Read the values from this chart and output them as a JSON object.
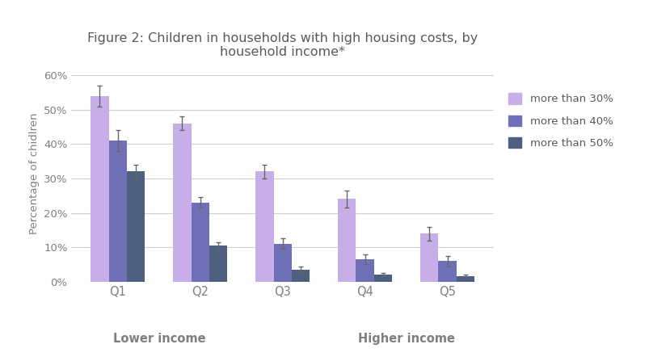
{
  "title": "Figure 2: Children in households with high housing costs, by\nhousehold income*",
  "ylabel": "Percentage of chidlren",
  "categories": [
    "Q1",
    "Q2",
    "Q3",
    "Q4",
    "Q5"
  ],
  "lower_income_label": "Lower income",
  "higher_income_label": "Higher income",
  "series": {
    "more than 30%": {
      "values": [
        54,
        46,
        32,
        24,
        14
      ],
      "errors": [
        3,
        2,
        2,
        2.5,
        2
      ],
      "color": "#c8aee8"
    },
    "more than 40%": {
      "values": [
        41,
        23,
        11,
        6.5,
        6
      ],
      "errors": [
        3,
        1.5,
        1.5,
        1.5,
        1.5
      ],
      "color": "#7070b8"
    },
    "more than 50%": {
      "values": [
        32,
        10.5,
        3.5,
        2,
        1.5
      ],
      "errors": [
        2,
        1,
        0.8,
        0.5,
        0.5
      ],
      "color": "#4d6080"
    }
  },
  "yticks": [
    0,
    10,
    20,
    30,
    40,
    50,
    60
  ],
  "ytick_labels": [
    "0%",
    "10%",
    "20%",
    "30%",
    "40%",
    "50%",
    "60%"
  ],
  "ylim": [
    0,
    63
  ],
  "legend_labels": [
    "more than 30%",
    "more than 40%",
    "more than 50%"
  ],
  "bar_width": 0.22,
  "background_color": "#ffffff",
  "grid_color": "#d0d0d0",
  "title_color": "#595959",
  "axis_label_color": "#7f7f7f",
  "tick_label_color": "#7f7f7f",
  "legend_text_color": "#595959"
}
